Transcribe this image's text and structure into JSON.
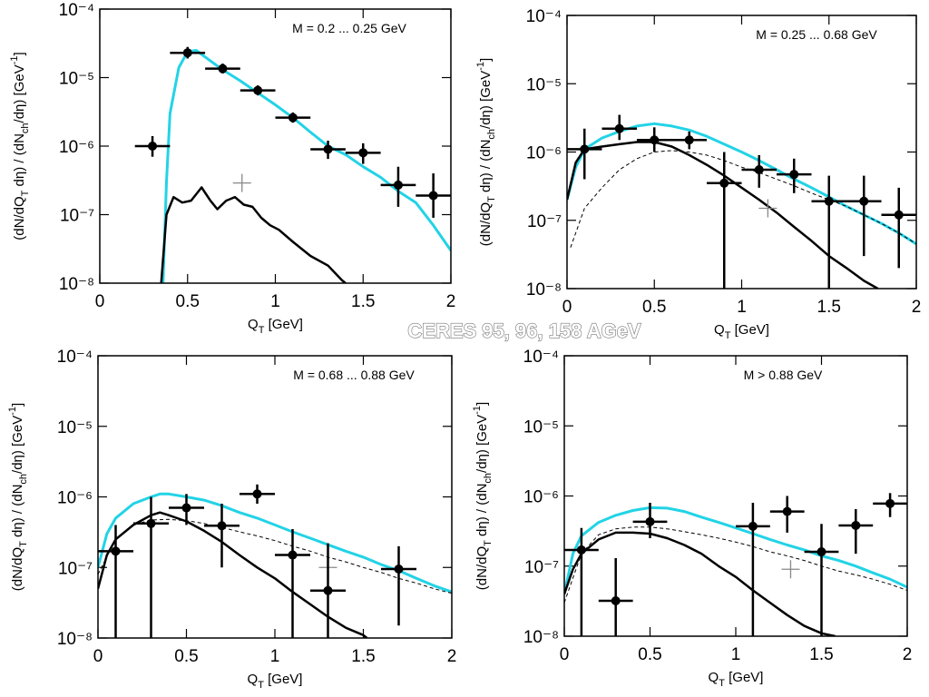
{
  "title": "CERES 95, 96, 158 AGeV",
  "chart_data": [
    {
      "type": "line",
      "annotation": "M = 0.2 ... 0.25 GeV",
      "xlabel": [
        [
          "Q",
          ""
        ],
        [
          "T",
          "sub"
        ],
        [
          " [GeV]",
          ""
        ]
      ],
      "ylabel": [
        [
          "(dN/dQ",
          ""
        ],
        [
          "T",
          "sub"
        ],
        [
          " dη) / (dN",
          ""
        ],
        [
          "ch",
          "sub"
        ],
        [
          "/dη) [GeV",
          ""
        ],
        [
          "-1",
          "sup"
        ],
        [
          "]",
          ""
        ]
      ],
      "log_y": true,
      "xlim": [
        0,
        2
      ],
      "ylim": [
        1e-08,
        0.0001
      ],
      "xticks": [
        0,
        0.5,
        1,
        1.5,
        2
      ],
      "yticks": [
        {
          "value": 1e-08,
          "label": "10⁻⁸"
        },
        {
          "value": 1e-07,
          "label": "10⁻⁷"
        },
        {
          "value": 1e-06,
          "label": "10⁻⁶"
        },
        {
          "value": 1e-05,
          "label": "10⁻⁵"
        },
        {
          "value": 0.0001,
          "label": "10⁻⁴"
        }
      ],
      "series": [
        {
          "color": "#22d3e6",
          "style": "solid",
          "x": [
            0.36,
            0.38,
            0.4,
            0.45,
            0.5,
            0.55,
            0.6,
            0.7,
            0.8,
            0.9,
            1.0,
            1.1,
            1.2,
            1.3,
            1.4,
            1.5,
            1.6,
            1.7,
            1.8,
            1.9,
            2.0
          ],
          "values": [
            1e-08,
            3e-07,
            3e-06,
            1.4e-05,
            2.4e-05,
            2.5e-05,
            2e-05,
            1.3e-05,
            9e-06,
            6e-06,
            4e-06,
            2.6e-06,
            1.6e-06,
            1e-06,
            7.5e-07,
            5e-07,
            3.5e-07,
            2.2e-07,
            1.5e-07,
            7e-08,
            3e-08
          ]
        },
        {
          "color": "#000000",
          "style": "solid",
          "x": [
            0.35,
            0.38,
            0.42,
            0.47,
            0.52,
            0.58,
            0.63,
            0.67,
            0.72,
            0.77,
            0.82,
            0.87,
            0.92,
            0.97,
            1.02,
            1.1,
            1.2,
            1.3,
            1.38,
            1.4
          ],
          "values": [
            1e-08,
            1e-07,
            1.8e-07,
            1.5e-07,
            1.6e-07,
            2.5e-07,
            1.6e-07,
            1.2e-07,
            1.6e-07,
            1.8e-07,
            1.4e-07,
            1.3e-07,
            9e-08,
            7e-08,
            6e-08,
            4e-08,
            2.5e-08,
            1.8e-08,
            1.1e-08,
            1e-08
          ]
        }
      ],
      "points": {
        "x": [
          0.3,
          0.5,
          0.7,
          0.9,
          1.1,
          1.3,
          1.5,
          1.7,
          1.9
        ],
        "values": [
          1e-06,
          2.3e-05,
          1.35e-05,
          6.5e-06,
          2.6e-06,
          9e-07,
          8e-07,
          2.7e-07,
          1.9e-07
        ],
        "xerr": [
          0.1,
          0.1,
          0.1,
          0.1,
          0.1,
          0.1,
          0.1,
          0.1,
          0.1
        ],
        "ylow": [
          7e-07,
          1.9e-05,
          1.15e-05,
          5.5e-06,
          2.2e-06,
          6.5e-07,
          5.5e-07,
          1.3e-07,
          9e-08
        ],
        "yhigh": [
          1.4e-06,
          2.8e-05,
          1.6e-05,
          7.7e-06,
          3.1e-06,
          1.2e-06,
          1.1e-06,
          5e-07,
          4e-07
        ]
      },
      "reference": {
        "x": 0.81,
        "y": 2.9e-07
      }
    },
    {
      "type": "line",
      "annotation": "M = 0.25 ... 0.68 GeV",
      "xlabel": [
        [
          "Q",
          ""
        ],
        [
          "T",
          "sub"
        ],
        [
          " [GeV]",
          ""
        ]
      ],
      "ylabel": [
        [
          "(dN/dQ",
          ""
        ],
        [
          "T",
          "sub"
        ],
        [
          " dη) / (dN",
          ""
        ],
        [
          "ch",
          "sub"
        ],
        [
          "/dη) [GeV",
          ""
        ],
        [
          "-1",
          "sup"
        ],
        [
          "]",
          ""
        ]
      ],
      "log_y": true,
      "xlim": [
        0,
        2
      ],
      "ylim": [
        1e-08,
        0.0001
      ],
      "xticks": [
        0,
        0.5,
        1,
        1.5,
        2
      ],
      "yticks": [
        {
          "value": 1e-08,
          "label": "10⁻⁸"
        },
        {
          "value": 1e-07,
          "label": "10⁻⁷"
        },
        {
          "value": 1e-06,
          "label": "10⁻⁶"
        },
        {
          "value": 1e-05,
          "label": "10⁻⁵"
        },
        {
          "value": 0.0001,
          "label": "10⁻⁴"
        }
      ],
      "series": [
        {
          "color": "#22d3e6",
          "style": "solid",
          "x": [
            0,
            0.05,
            0.1,
            0.2,
            0.3,
            0.4,
            0.5,
            0.6,
            0.7,
            0.8,
            0.9,
            1.0,
            1.1,
            1.2,
            1.3,
            1.4,
            1.5,
            1.6,
            1.7,
            1.8,
            1.9,
            2.0
          ],
          "values": [
            2e-07,
            6e-07,
            1.1e-06,
            1.6e-06,
            2e-06,
            2.4e-06,
            2.6e-06,
            2.4e-06,
            2.1e-06,
            1.7e-06,
            1.3e-06,
            1e-06,
            7.5e-07,
            5.5e-07,
            4e-07,
            3e-07,
            2.2e-07,
            1.6e-07,
            1.2e-07,
            9e-08,
            6.5e-08,
            4.5e-08
          ]
        },
        {
          "color": "#000000",
          "style": "solid",
          "x": [
            0,
            0.05,
            0.1,
            0.2,
            0.3,
            0.4,
            0.5,
            0.6,
            0.7,
            0.8,
            0.9,
            1.0,
            1.1,
            1.2,
            1.3,
            1.4,
            1.5,
            1.6,
            1.7,
            1.78
          ],
          "values": [
            2e-07,
            7e-07,
            1.1e-06,
            1.2e-06,
            1.3e-06,
            1.4e-06,
            1.4e-06,
            1.2e-06,
            9e-07,
            6.5e-07,
            4.5e-07,
            3e-07,
            2e-07,
            1.3e-07,
            8e-08,
            5e-08,
            3e-08,
            2e-08,
            1.3e-08,
            1e-08
          ]
        },
        {
          "color": "#000000",
          "style": "dashed",
          "x": [
            0.02,
            0.1,
            0.2,
            0.3,
            0.4,
            0.5,
            0.6,
            0.7,
            0.8,
            0.9,
            1.0,
            1.1,
            1.2,
            1.3,
            1.4,
            1.5,
            1.6,
            1.7,
            1.8,
            1.9,
            2.0
          ],
          "values": [
            4e-08,
            1.5e-07,
            3e-07,
            5.5e-07,
            8e-07,
            1e-06,
            1.05e-06,
            1e-06,
            9e-07,
            7.5e-07,
            6e-07,
            5e-07,
            4e-07,
            3.2e-07,
            2.5e-07,
            2e-07,
            1.6e-07,
            1.2e-07,
            9e-08,
            6.5e-08,
            4.5e-08
          ]
        }
      ],
      "points": {
        "x": [
          0.1,
          0.3,
          0.5,
          0.7,
          0.9,
          1.1,
          1.3,
          1.5,
          1.7,
          1.9
        ],
        "values": [
          1.1e-06,
          2.2e-06,
          1.5e-06,
          1.5e-06,
          3.5e-07,
          5.5e-07,
          4.7e-07,
          1.9e-07,
          1.9e-07,
          1.2e-07
        ],
        "xerr": [
          0.1,
          0.1,
          0.1,
          0.1,
          0.1,
          0.1,
          0.1,
          0.1,
          0.1,
          0.1
        ],
        "ylow": [
          4e-07,
          1.5e-06,
          1e-06,
          1.1e-06,
          1e-08,
          3e-07,
          2.5e-07,
          1e-08,
          3e-08,
          2e-08
        ],
        "yhigh": [
          2.2e-06,
          3.5e-06,
          2.3e-06,
          2e-06,
          1e-06,
          9e-07,
          8e-07,
          4.5e-07,
          4.5e-07,
          3e-07
        ]
      },
      "reference": {
        "x": 1.15,
        "y": 1.5e-07
      }
    },
    {
      "type": "line",
      "annotation": "M = 0.68 ... 0.88 GeV",
      "xlabel": [
        [
          "Q",
          ""
        ],
        [
          "T",
          "sub"
        ],
        [
          " [GeV]",
          ""
        ]
      ],
      "ylabel": [
        [
          "(dN/dQ",
          ""
        ],
        [
          "T",
          "sub"
        ],
        [
          " dη) / (dN",
          ""
        ],
        [
          "ch",
          "sub"
        ],
        [
          "/dη) [GeV",
          ""
        ],
        [
          "-1",
          "sup"
        ],
        [
          "]",
          ""
        ]
      ],
      "log_y": true,
      "xlim": [
        0,
        2
      ],
      "ylim": [
        1e-08,
        0.0001
      ],
      "xticks": [
        0,
        0.5,
        1,
        1.5,
        2
      ],
      "yticks": [
        {
          "value": 1e-08,
          "label": "10⁻⁸"
        },
        {
          "value": 1e-07,
          "label": "10⁻⁷"
        },
        {
          "value": 1e-06,
          "label": "10⁻⁶"
        },
        {
          "value": 1e-05,
          "label": "10⁻⁵"
        },
        {
          "value": 0.0001,
          "label": "10⁻⁴"
        }
      ],
      "series": [
        {
          "color": "#22d3e6",
          "style": "solid",
          "x": [
            0,
            0.05,
            0.1,
            0.2,
            0.3,
            0.35,
            0.4,
            0.5,
            0.6,
            0.7,
            0.8,
            0.9,
            1.0,
            1.1,
            1.2,
            1.3,
            1.4,
            1.5,
            1.6,
            1.7,
            1.8,
            1.9,
            2.0
          ],
          "values": [
            1e-07,
            3e-07,
            5e-07,
            8e-07,
            1e-06,
            1.1e-06,
            1.1e-06,
            1e-06,
            9e-07,
            7.5e-07,
            6e-07,
            5e-07,
            4e-07,
            3.2e-07,
            2.6e-07,
            2.1e-07,
            1.7e-07,
            1.4e-07,
            1.1e-07,
            9e-08,
            7e-08,
            5.5e-08,
            4.5e-08
          ]
        },
        {
          "color": "#000000",
          "style": "solid",
          "x": [
            0,
            0.05,
            0.1,
            0.2,
            0.3,
            0.35,
            0.4,
            0.5,
            0.6,
            0.7,
            0.8,
            0.9,
            1.0,
            1.1,
            1.2,
            1.3,
            1.4,
            1.5,
            1.52
          ],
          "values": [
            5e-08,
            1.5e-07,
            2.5e-07,
            4e-07,
            5.5e-07,
            6e-07,
            5.5e-07,
            4.5e-07,
            3.3e-07,
            2.3e-07,
            1.5e-07,
            1e-07,
            7e-08,
            4.5e-08,
            3e-08,
            2e-08,
            1.4e-08,
            1.1e-08,
            1e-08
          ]
        },
        {
          "color": "#000000",
          "style": "dashed",
          "x": [
            0,
            0.1,
            0.2,
            0.3,
            0.4,
            0.5,
            0.6,
            0.7,
            0.8,
            0.9,
            1.0,
            1.1,
            1.2,
            1.3,
            1.4,
            1.5,
            1.6,
            1.7,
            1.8,
            1.9,
            2.0
          ],
          "values": [
            8e-08,
            2.5e-07,
            4e-07,
            4.7e-07,
            4.8e-07,
            4.6e-07,
            4.2e-07,
            3.7e-07,
            3.2e-07,
            2.8e-07,
            2.4e-07,
            2e-07,
            1.7e-07,
            1.4e-07,
            1.2e-07,
            1e-07,
            8.5e-08,
            7e-08,
            6e-08,
            5e-08,
            4.3e-08
          ]
        }
      ],
      "points": {
        "x": [
          0.1,
          0.3,
          0.5,
          0.7,
          0.9,
          1.1,
          1.3,
          1.7
        ],
        "values": [
          1.7e-07,
          4.2e-07,
          7e-07,
          3.9e-07,
          1.1e-06,
          1.5e-07,
          4.7e-08,
          9.5e-08
        ],
        "xerr": [
          0.1,
          0.1,
          0.1,
          0.1,
          0.1,
          0.1,
          0.1,
          0.1
        ],
        "ylow": [
          1e-08,
          1e-08,
          4e-07,
          1e-07,
          8e-07,
          1e-08,
          1e-08,
          1.5e-08
        ],
        "yhigh": [
          4e-07,
          1e-06,
          1.1e-06,
          8e-07,
          1.5e-06,
          3.5e-07,
          2.2e-07,
          2e-07
        ]
      },
      "reference": {
        "x": 1.3,
        "y": 1e-07
      }
    },
    {
      "type": "line",
      "annotation": "M > 0.88 GeV",
      "xlabel": [
        [
          "Q",
          ""
        ],
        [
          "T",
          "sub"
        ],
        [
          " [GeV]",
          ""
        ]
      ],
      "ylabel": [
        [
          "(dN/dQ",
          ""
        ],
        [
          "T",
          "sub"
        ],
        [
          " dη) / (dN",
          ""
        ],
        [
          "ch",
          "sub"
        ],
        [
          "/dη) [GeV",
          ""
        ],
        [
          "-1",
          "sup"
        ],
        [
          "]",
          ""
        ]
      ],
      "log_y": true,
      "xlim": [
        0,
        2
      ],
      "ylim": [
        1e-08,
        0.0001
      ],
      "xticks": [
        0,
        0.5,
        1,
        1.5,
        2
      ],
      "yticks": [
        {
          "value": 1e-08,
          "label": "10⁻⁸"
        },
        {
          "value": 1e-07,
          "label": "10⁻⁷"
        },
        {
          "value": 1e-06,
          "label": "10⁻⁶"
        },
        {
          "value": 1e-05,
          "label": "10⁻⁵"
        },
        {
          "value": 0.0001,
          "label": "10⁻⁴"
        }
      ],
      "series": [
        {
          "color": "#22d3e6",
          "style": "solid",
          "x": [
            0,
            0.05,
            0.1,
            0.2,
            0.3,
            0.4,
            0.5,
            0.6,
            0.7,
            0.8,
            0.9,
            1.0,
            1.1,
            1.2,
            1.3,
            1.4,
            1.5,
            1.6,
            1.7,
            1.8,
            1.9,
            2.0
          ],
          "values": [
            4e-08,
            1.5e-07,
            2.7e-07,
            4.2e-07,
            5.3e-07,
            6.2e-07,
            6.8e-07,
            6.7e-07,
            6e-07,
            5e-07,
            4.2e-07,
            3.5e-07,
            2.9e-07,
            2.4e-07,
            2e-07,
            1.7e-07,
            1.4e-07,
            1.2e-07,
            1e-07,
            8e-08,
            6.5e-08,
            5e-08
          ]
        },
        {
          "color": "#000000",
          "style": "solid",
          "x": [
            0,
            0.05,
            0.1,
            0.2,
            0.3,
            0.4,
            0.5,
            0.6,
            0.7,
            0.8,
            0.9,
            1.0,
            1.1,
            1.2,
            1.3,
            1.4,
            1.5,
            1.58
          ],
          "values": [
            4e-08,
            9e-08,
            1.5e-07,
            2.4e-07,
            3e-07,
            3e-07,
            2.9e-07,
            2.5e-07,
            2e-07,
            1.5e-07,
            1e-07,
            7e-08,
            4.5e-08,
            3e-08,
            2e-08,
            1.4e-08,
            1.1e-08,
            1e-08
          ]
        },
        {
          "color": "#000000",
          "style": "dashed",
          "x": [
            0,
            0.1,
            0.2,
            0.3,
            0.4,
            0.5,
            0.6,
            0.7,
            0.8,
            0.9,
            1.0,
            1.1,
            1.2,
            1.3,
            1.4,
            1.5,
            1.6,
            1.7,
            1.8,
            1.9,
            2.0
          ],
          "values": [
            3e-08,
            1.5e-07,
            2.8e-07,
            3.4e-07,
            3.6e-07,
            3.6e-07,
            3.4e-07,
            3.1e-07,
            2.8e-07,
            2.5e-07,
            2.2e-07,
            1.9e-07,
            1.6e-07,
            1.4e-07,
            1.2e-07,
            1e-07,
            8.5e-08,
            7.5e-08,
            6.5e-08,
            5.5e-08,
            4.5e-08
          ]
        }
      ],
      "points": {
        "x": [
          0.1,
          0.3,
          0.5,
          1.1,
          1.3,
          1.5,
          1.7,
          1.9
        ],
        "values": [
          1.7e-07,
          3.2e-08,
          4.3e-07,
          3.7e-07,
          6e-07,
          1.6e-07,
          3.8e-07,
          7.8e-07
        ],
        "xerr": [
          0.1,
          0.1,
          0.1,
          0.1,
          0.1,
          0.1,
          0.1,
          0.1
        ],
        "ylow": [
          1e-08,
          1e-08,
          2.5e-07,
          1e-08,
          3e-07,
          1e-08,
          1.5e-07,
          5e-07
        ],
        "yhigh": [
          3.5e-07,
          1.3e-07,
          8e-07,
          8e-07,
          1e-06,
          4e-07,
          6.5e-07,
          1.1e-06
        ]
      },
      "reference": {
        "x": 1.32,
        "y": 9e-08
      }
    }
  ]
}
